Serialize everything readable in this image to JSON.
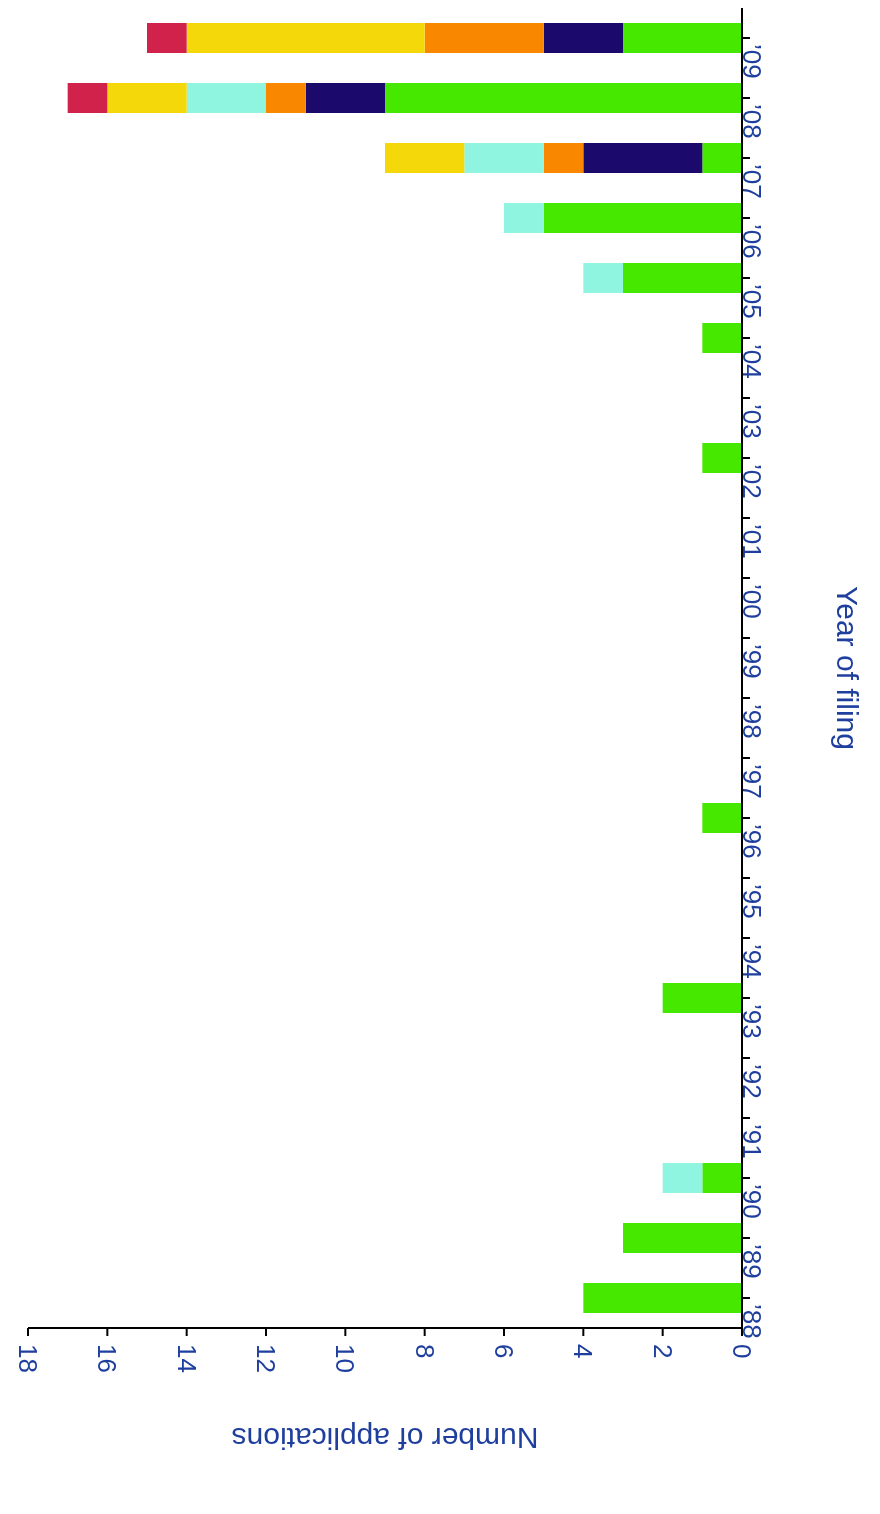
{
  "chart_data": {
    "type": "bar",
    "orientation": "horizontal",
    "stacked": true,
    "xlabel": "Number of applications",
    "ylabel": "Year of filing",
    "categories": [
      "’09",
      "’08",
      "’07",
      "’06",
      "’05",
      "’04",
      "’03",
      "’02",
      "’01",
      "’00",
      "’99",
      "’98",
      "’97",
      "’96",
      "’95",
      "’94",
      "’93",
      "’92",
      "’91",
      "’90",
      "’89",
      "’88"
    ],
    "series": [
      {
        "color": "#46e800",
        "values": [
          3,
          9,
          1,
          5,
          3,
          1,
          null,
          1,
          null,
          null,
          null,
          null,
          null,
          1,
          null,
          null,
          2,
          null,
          null,
          1,
          3,
          4
        ]
      },
      {
        "color": "#1b0a6b",
        "values": [
          2,
          2,
          3,
          null,
          null,
          null,
          null,
          null,
          null,
          null,
          null,
          null,
          null,
          null,
          null,
          null,
          null,
          null,
          null,
          null,
          null,
          null
        ]
      },
      {
        "color": "#f98800",
        "values": [
          3,
          1,
          1,
          null,
          null,
          null,
          null,
          null,
          null,
          null,
          null,
          null,
          null,
          null,
          null,
          null,
          null,
          null,
          null,
          null,
          null,
          null
        ]
      },
      {
        "color": "#8ff5e0",
        "values": [
          null,
          2,
          2,
          1,
          1,
          null,
          null,
          null,
          null,
          null,
          null,
          null,
          null,
          null,
          null,
          null,
          null,
          null,
          null,
          1,
          null,
          null
        ]
      },
      {
        "color": "#f4d80a",
        "values": [
          6,
          2,
          2,
          null,
          null,
          null,
          null,
          null,
          null,
          null,
          null,
          null,
          null,
          null,
          null,
          null,
          null,
          null,
          null,
          null,
          null,
          null
        ]
      },
      {
        "color": "#d0224a",
        "values": [
          1,
          1,
          null,
          null,
          null,
          null,
          null,
          null,
          null,
          null,
          null,
          null,
          null,
          null,
          null,
          null,
          null,
          null,
          null,
          null,
          null,
          null
        ]
      }
    ],
    "xlim": [
      18,
      0
    ],
    "xticks": [
      0,
      2,
      4,
      6,
      8,
      10,
      12,
      14,
      16,
      18
    ],
    "grid": false,
    "legend": false
  }
}
